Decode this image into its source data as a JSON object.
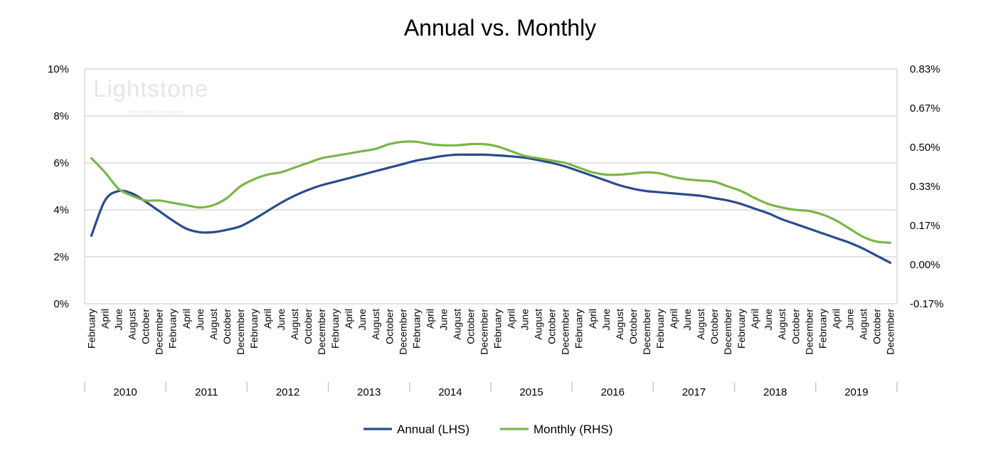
{
  "chart_data": {
    "type": "line",
    "title": "Annual vs. Monthly",
    "watermark": {
      "text": "Lightstone",
      "tagline": "We simplify the complex"
    },
    "y_left": {
      "ticks": [
        "0%",
        "2%",
        "4%",
        "6%",
        "8%",
        "10%"
      ],
      "ylim": [
        0,
        10
      ],
      "unit": "%"
    },
    "y_right": {
      "ticks": [
        "-0.17%",
        "0.00%",
        "0.17%",
        "0.33%",
        "0.50%",
        "0.67%",
        "0.83%"
      ],
      "ylim": [
        -0.17,
        0.83
      ],
      "unit": "%"
    },
    "x_month_labels": [
      "February",
      "April",
      "June",
      "August",
      "October",
      "December"
    ],
    "years": [
      "2010",
      "2011",
      "2012",
      "2013",
      "2014",
      "2015",
      "2016",
      "2017",
      "2018",
      "2019"
    ],
    "grid": true,
    "legend_position": "bottom",
    "x": [
      "2010-02",
      "2010-04",
      "2010-06",
      "2010-08",
      "2010-10",
      "2010-12",
      "2011-02",
      "2011-04",
      "2011-06",
      "2011-08",
      "2011-10",
      "2011-12",
      "2012-02",
      "2012-04",
      "2012-06",
      "2012-08",
      "2012-10",
      "2012-12",
      "2013-02",
      "2013-04",
      "2013-06",
      "2013-08",
      "2013-10",
      "2013-12",
      "2014-02",
      "2014-04",
      "2014-06",
      "2014-08",
      "2014-10",
      "2014-12",
      "2015-02",
      "2015-04",
      "2015-06",
      "2015-08",
      "2015-10",
      "2015-12",
      "2016-02",
      "2016-04",
      "2016-06",
      "2016-08",
      "2016-10",
      "2016-12",
      "2017-02",
      "2017-04",
      "2017-06",
      "2017-08",
      "2017-10",
      "2017-12",
      "2018-02",
      "2018-04",
      "2018-06",
      "2018-08",
      "2018-10",
      "2018-12",
      "2019-02",
      "2019-04",
      "2019-06",
      "2019-08",
      "2019-10",
      "2019-12"
    ],
    "series": [
      {
        "name": "Annual (LHS)",
        "axis": "left",
        "color": "#2a4b8d",
        "values": [
          2.9,
          4.4,
          4.8,
          4.7,
          4.35,
          3.95,
          3.55,
          3.2,
          3.05,
          3.05,
          3.15,
          3.3,
          3.6,
          3.95,
          4.3,
          4.6,
          4.85,
          5.05,
          5.2,
          5.35,
          5.5,
          5.65,
          5.8,
          5.95,
          6.1,
          6.2,
          6.3,
          6.35,
          6.35,
          6.35,
          6.32,
          6.28,
          6.22,
          6.12,
          6.0,
          5.85,
          5.65,
          5.45,
          5.25,
          5.05,
          4.9,
          4.8,
          4.75,
          4.7,
          4.65,
          4.6,
          4.5,
          4.4,
          4.25,
          4.05,
          3.85,
          3.6,
          3.4,
          3.2,
          3.0,
          2.8,
          2.6,
          2.35,
          2.05,
          1.75
        ]
      },
      {
        "name": "Monthly (RHS)",
        "axis": "right",
        "color": "#7ab648",
        "values": [
          0.45,
          0.39,
          0.32,
          0.29,
          0.27,
          0.27,
          0.26,
          0.25,
          0.24,
          0.25,
          0.28,
          0.33,
          0.36,
          0.38,
          0.39,
          0.41,
          0.43,
          0.45,
          0.46,
          0.47,
          0.48,
          0.49,
          0.51,
          0.52,
          0.52,
          0.51,
          0.505,
          0.505,
          0.51,
          0.51,
          0.5,
          0.48,
          0.46,
          0.45,
          0.44,
          0.43,
          0.41,
          0.39,
          0.38,
          0.38,
          0.385,
          0.39,
          0.385,
          0.37,
          0.36,
          0.355,
          0.35,
          0.33,
          0.31,
          0.28,
          0.255,
          0.24,
          0.23,
          0.225,
          0.21,
          0.185,
          0.15,
          0.115,
          0.095,
          0.09
        ]
      }
    ]
  }
}
